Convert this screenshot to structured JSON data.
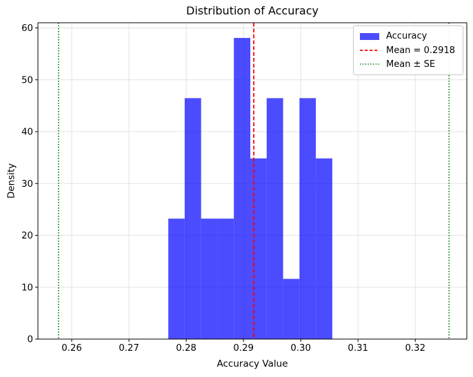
{
  "chart_data": {
    "type": "bar",
    "subtype": "histogram",
    "title": "Distribution of Accuracy",
    "xlabel": "Accuracy Value",
    "ylabel": "Density",
    "xlim": [
      0.2541,
      0.329
    ],
    "ylim": [
      0,
      61.0
    ],
    "xtick_values": [
      0.26,
      0.27,
      0.28,
      0.29,
      0.3,
      0.31,
      0.32
    ],
    "xtick_labels": [
      "0.26",
      "0.27",
      "0.28",
      "0.29",
      "0.30",
      "0.31",
      "0.32"
    ],
    "ytick_values": [
      0,
      10,
      20,
      30,
      40,
      50,
      60
    ],
    "ytick_labels": [
      "0",
      "10",
      "20",
      "30",
      "40",
      "50",
      "60"
    ],
    "grid": true,
    "grid_color": "#e3e3e3",
    "bar_color": "rgba(0,0,255,0.7)",
    "bin_edges": [
      0.27687,
      0.27973,
      0.2826,
      0.28546,
      0.28832,
      0.29119,
      0.29405,
      0.29692,
      0.29978,
      0.30264,
      0.30551
    ],
    "densities": [
      23.23,
      46.46,
      23.23,
      23.23,
      58.07,
      34.84,
      46.46,
      11.61,
      46.46,
      34.84
    ],
    "mean_line": {
      "value": 0.2918,
      "color": "#ff0000",
      "style": "dashed"
    },
    "se_lines": {
      "values": [
        0.2577,
        0.3259
      ],
      "color": "#008000",
      "style": "dotted"
    },
    "legend_position": "upper right"
  },
  "legend": {
    "items": [
      {
        "label": "Accuracy",
        "type": "patch",
        "color": "rgba(0,0,255,0.7)"
      },
      {
        "label": "Mean = 0.2918",
        "type": "dashed-line",
        "color": "#ff0000"
      },
      {
        "label": "Mean ± SE",
        "type": "dotted-line",
        "color": "#008000"
      }
    ]
  }
}
